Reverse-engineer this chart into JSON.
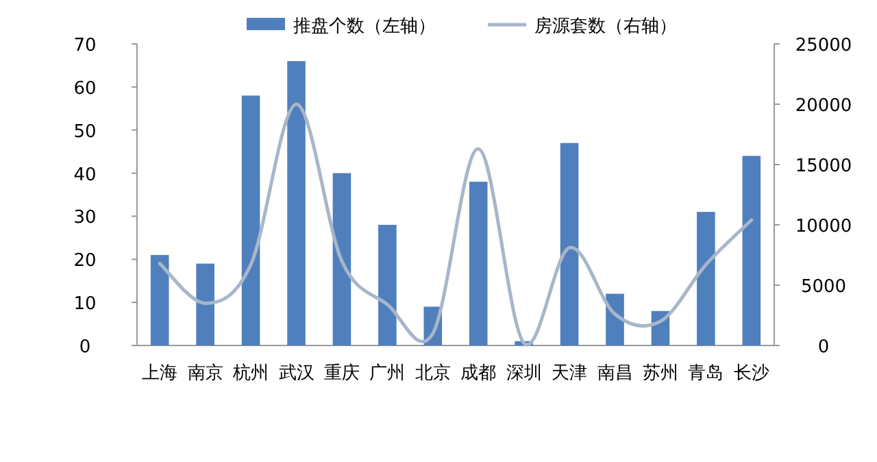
{
  "chart_data": {
    "type": "bar",
    "categories": [
      "上海",
      "南京",
      "杭州",
      "武汉",
      "重庆",
      "广州",
      "北京",
      "成都",
      "深圳",
      "天津",
      "南昌",
      "苏州",
      "青岛",
      "长沙"
    ],
    "series": [
      {
        "name": "推盘个数（左轴）",
        "color": "#4f7fbd",
        "values": [
          21,
          19,
          58,
          66,
          40,
          28,
          9,
          38,
          1,
          47,
          12,
          8,
          31,
          44
        ]
      },
      {
        "name": "房源套数（右轴）",
        "type": "line",
        "axis": "y2",
        "color": "#a9b6c9",
        "values": [
          6800,
          3500,
          6700,
          20000,
          7000,
          3400,
          1000,
          16300,
          200,
          8100,
          2600,
          2000,
          6700,
          10400
        ]
      }
    ],
    "ylim": [
      0,
      70
    ],
    "yticks": [
      0,
      10,
      20,
      30,
      40,
      50,
      60,
      70
    ],
    "y2lim": [
      0,
      25000
    ],
    "y2ticks": [
      0,
      5000,
      10000,
      15000,
      20000,
      25000
    ],
    "legend": "top",
    "grid": false
  }
}
